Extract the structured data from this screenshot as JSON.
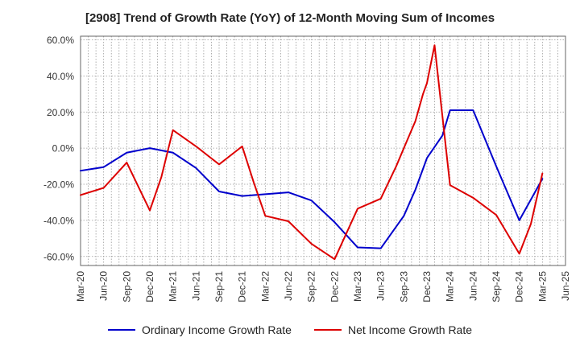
{
  "chart_data": {
    "type": "line",
    "title": "[2908]  Trend of Growth Rate (YoY) of 12-Month Moving Sum of Incomes",
    "xlabel": "",
    "ylabel": "",
    "x_ticks": [
      "Mar-20",
      "Jun-20",
      "Sep-20",
      "Dec-20",
      "Mar-21",
      "Jun-21",
      "Sep-21",
      "Dec-21",
      "Mar-22",
      "Jun-22",
      "Sep-22",
      "Dec-22",
      "Mar-23",
      "Jun-23",
      "Sep-23",
      "Dec-23",
      "Mar-24",
      "Jun-24",
      "Sep-24",
      "Dec-24",
      "Mar-25",
      "Jun-25"
    ],
    "y_ticks": [
      "60.0%",
      "40.0%",
      "20.0%",
      "0.0%",
      "-20.0%",
      "-40.0%",
      "-60.0%"
    ],
    "ylim": [
      -65,
      62
    ],
    "grid": true,
    "legend_position": "bottom",
    "series": [
      {
        "name": "Ordinary Income Growth Rate",
        "color": "#0000cc",
        "values": [
          [
            0,
            -12.5
          ],
          [
            1,
            -10.5
          ],
          [
            2,
            -2.5
          ],
          [
            3,
            0
          ],
          [
            4,
            -2.5
          ],
          [
            5,
            -11
          ],
          [
            6,
            -24
          ],
          [
            7,
            -26.5
          ],
          [
            8,
            -25.5
          ],
          [
            9,
            -24.5
          ],
          [
            10,
            -29
          ],
          [
            11,
            -41
          ],
          [
            12,
            -55
          ],
          [
            13,
            -55.5
          ],
          [
            14,
            -37.5
          ],
          [
            14.5,
            -23
          ],
          [
            15,
            -5.5
          ],
          [
            15.67,
            7
          ],
          [
            16,
            21
          ],
          [
            17,
            21
          ],
          [
            18,
            -10
          ],
          [
            19,
            -40
          ],
          [
            20,
            -17
          ]
        ]
      },
      {
        "name": "Net Income Growth Rate",
        "color": "#dd0000",
        "values": [
          [
            0,
            -26
          ],
          [
            1,
            -22
          ],
          [
            2,
            -8
          ],
          [
            3,
            -34.5
          ],
          [
            3.5,
            -16
          ],
          [
            4,
            10
          ],
          [
            5,
            1
          ],
          [
            6,
            -9
          ],
          [
            7,
            1
          ],
          [
            7.5,
            -19
          ],
          [
            8,
            -37.5
          ],
          [
            9,
            -40.5
          ],
          [
            10,
            -53
          ],
          [
            11,
            -61.5
          ],
          [
            12,
            -33.5
          ],
          [
            13,
            -28
          ],
          [
            13.67,
            -10
          ],
          [
            14,
            0
          ],
          [
            14.5,
            15
          ],
          [
            14.83,
            30
          ],
          [
            15,
            36
          ],
          [
            15.33,
            57
          ],
          [
            16,
            -20.5
          ],
          [
            17,
            -27.5
          ],
          [
            18,
            -37
          ],
          [
            19,
            -58.5
          ],
          [
            19.5,
            -42
          ],
          [
            20,
            -14
          ]
        ]
      }
    ]
  }
}
